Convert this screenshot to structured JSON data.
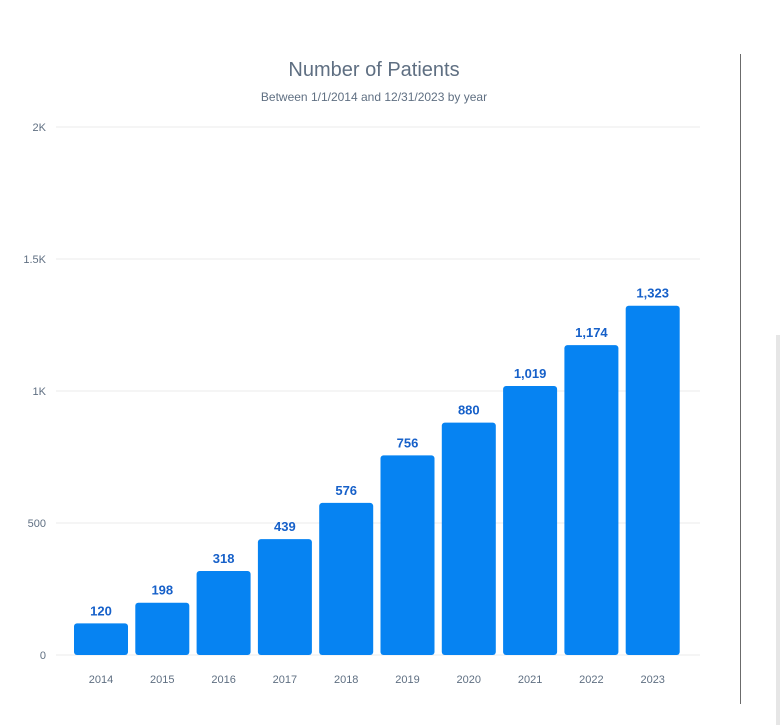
{
  "chart_data": {
    "type": "bar",
    "title": "Number of Patients",
    "subtitle": "Between 1/1/2014 and 12/31/2023 by year",
    "categories": [
      "2014",
      "2015",
      "2016",
      "2017",
      "2018",
      "2019",
      "2020",
      "2021",
      "2022",
      "2023"
    ],
    "values": [
      120,
      198,
      318,
      439,
      576,
      756,
      880,
      1019,
      1174,
      1323
    ],
    "data_labels": [
      "120",
      "198",
      "318",
      "439",
      "576",
      "756",
      "880",
      "1,019",
      "1,174",
      "1,323"
    ],
    "ylim": [
      0,
      2000
    ],
    "yticks": [
      {
        "value": 0,
        "label": "0"
      },
      {
        "value": 500,
        "label": "500"
      },
      {
        "value": 1000,
        "label": "1K"
      },
      {
        "value": 1500,
        "label": "1.5K"
      },
      {
        "value": 2000,
        "label": "2K"
      }
    ],
    "grid": true,
    "legend": "none",
    "colors": {
      "bar": "#0683f2",
      "data_label": "#1660c9",
      "grid": "#ebebeb",
      "text": "#5f6f82"
    }
  }
}
